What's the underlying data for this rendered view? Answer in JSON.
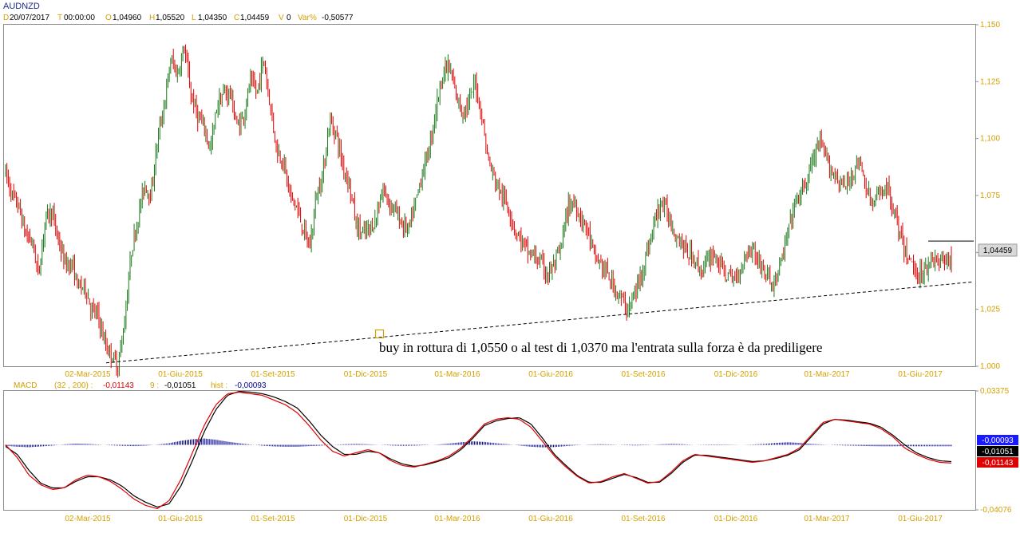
{
  "symbol": "AUDNZD",
  "ohlc_header": {
    "date_key": "D",
    "date": "20/07/2017",
    "time_key": "T",
    "time": "00:00:00",
    "open_key": "O",
    "open": "1,04960",
    "high_key": "H",
    "high": "1,05520",
    "low_key": "L",
    "low": "1,04350",
    "close_key": "C",
    "close": "1,04459",
    "volume_key": "V",
    "volume": "0",
    "var_key": "Var%",
    "var": "-0,50577"
  },
  "last_price_label": "1,04459",
  "annotation_text": "buy in rottura di 1,0550 o al test di 1,0370 ma l'entrata sulla forza è da prediligere",
  "macd_header": {
    "name": "MACD",
    "params": "(32 , 200) :",
    "macd_value": "-0,01143",
    "signal_key": "9 :",
    "signal_value": "-0,01051",
    "hist_key": "hist :",
    "hist_value": "-0,00093"
  },
  "macd_value_labels": [
    "-0,00093",
    "-0,01051",
    "-0,01143"
  ],
  "colors": {
    "up": "#1a7a1a",
    "down": "#e00000",
    "axis_text": "#d4a000",
    "macd_line": "#e00000",
    "signal_line": "#000000",
    "hist": "#00008b"
  },
  "chart_data": [
    {
      "type": "candlestick",
      "symbol": "AUDNZD",
      "x_tick_labels": [
        "02-Mar-2015",
        "01-Giu-2015",
        "01-Set-2015",
        "01-Dic-2015",
        "01-Mar-2016",
        "01-Giu-2016",
        "01-Set-2016",
        "01-Dic-2016",
        "01-Mar-2017",
        "01-Giu-2017"
      ],
      "y_tick_labels": [
        "1,150",
        "1,125",
        "1,100",
        "1,075",
        "1,050",
        "1,025",
        "1,000"
      ],
      "ylim": [
        1.0,
        1.15
      ],
      "trend_path": [
        [
          1.085,
          1.075
        ],
        [
          1.07,
          1.058
        ],
        [
          1.055,
          1.04
        ],
        [
          1.065,
          1.068
        ],
        [
          1.055,
          1.045
        ],
        [
          1.045,
          1.035
        ],
        [
          1.035,
          1.025
        ],
        [
          1.022,
          1.01
        ],
        [
          1.005,
          1.0
        ],
        [
          1.02,
          1.05
        ],
        [
          1.065,
          1.08
        ],
        [
          1.075,
          1.1
        ],
        [
          1.115,
          1.135
        ],
        [
          1.128,
          1.14
        ],
        [
          1.12,
          1.11
        ],
        [
          1.105,
          1.095
        ],
        [
          1.115,
          1.12
        ],
        [
          1.12,
          1.105
        ],
        [
          1.11,
          1.125
        ],
        [
          1.12,
          1.135
        ],
        [
          1.115,
          1.095
        ],
        [
          1.09,
          1.075
        ],
        [
          1.07,
          1.06
        ],
        [
          1.052,
          1.075
        ],
        [
          1.085,
          1.108
        ],
        [
          1.102,
          1.088
        ],
        [
          1.08,
          1.062
        ],
        [
          1.058,
          1.06
        ],
        [
          1.065,
          1.078
        ],
        [
          1.072,
          1.068
        ],
        [
          1.062,
          1.06
        ],
        [
          1.072,
          1.085
        ],
        [
          1.095,
          1.112
        ],
        [
          1.128,
          1.132
        ],
        [
          1.12,
          1.112
        ],
        [
          1.115,
          1.125
        ],
        [
          1.11,
          1.09
        ],
        [
          1.082,
          1.075
        ],
        [
          1.07,
          1.06
        ],
        [
          1.055,
          1.05
        ],
        [
          1.048,
          1.045
        ],
        [
          1.04,
          1.045
        ],
        [
          1.052,
          1.07
        ],
        [
          1.072,
          1.065
        ],
        [
          1.06,
          1.048
        ],
        [
          1.045,
          1.04
        ],
        [
          1.035,
          1.03
        ],
        [
          1.025,
          1.03
        ],
        [
          1.04,
          1.05
        ],
        [
          1.062,
          1.072
        ],
        [
          1.068,
          1.06
        ],
        [
          1.055,
          1.05
        ],
        [
          1.048,
          1.042
        ],
        [
          1.045,
          1.05
        ],
        [
          1.045,
          1.04
        ],
        [
          1.038,
          1.042
        ],
        [
          1.05,
          1.052
        ],
        [
          1.045,
          1.04
        ],
        [
          1.036,
          1.042
        ],
        [
          1.055,
          1.068
        ],
        [
          1.075,
          1.08
        ],
        [
          1.09,
          1.098
        ],
        [
          1.092,
          1.085
        ],
        [
          1.082,
          1.078
        ],
        [
          1.085,
          1.09
        ],
        [
          1.08,
          1.07
        ],
        [
          1.075,
          1.08
        ],
        [
          1.072,
          1.06
        ],
        [
          1.05,
          1.045
        ],
        [
          1.04,
          1.042
        ],
        [
          1.048,
          1.045
        ],
        [
          1.048,
          1.045
        ]
      ],
      "trendline_dashed": {
        "from": [
          "02-Mar-2015",
          1.0015
        ],
        "to": [
          "after 01-Giu-2017",
          1.037
        ]
      },
      "resistance_line": {
        "y": 1.055
      },
      "last_close": 1.04459
    },
    {
      "type": "line",
      "name": "MACD (32 , 200)",
      "y_tick_labels": [
        "0,03375",
        "-0,04076"
      ],
      "ylim": [
        -0.04076,
        0.03375
      ],
      "series": [
        {
          "name": "MACD",
          "color": "#e00000",
          "values": [
            0.0,
            -0.008,
            -0.019,
            -0.025,
            -0.028,
            -0.027,
            -0.022,
            -0.019,
            -0.02,
            -0.023,
            -0.028,
            -0.034,
            -0.038,
            -0.04,
            -0.035,
            -0.022,
            -0.005,
            0.012,
            0.025,
            0.032,
            0.033,
            0.032,
            0.031,
            0.028,
            0.025,
            0.02,
            0.012,
            0.003,
            -0.004,
            -0.007,
            -0.005,
            -0.003,
            -0.005,
            -0.01,
            -0.013,
            -0.014,
            -0.012,
            -0.01,
            -0.007,
            -0.002,
            0.005,
            0.013,
            0.016,
            0.017,
            0.016,
            0.011,
            0.002,
            -0.007,
            -0.014,
            -0.02,
            -0.024,
            -0.023,
            -0.02,
            -0.018,
            -0.021,
            -0.024,
            -0.023,
            -0.017,
            -0.01,
            -0.006,
            -0.007,
            -0.008,
            -0.009,
            -0.01,
            -0.011,
            -0.01,
            -0.008,
            -0.006,
            -0.002,
            0.006,
            0.014,
            0.016,
            0.015,
            0.014,
            0.013,
            0.01,
            0.005,
            -0.002,
            -0.006,
            -0.009,
            -0.011,
            -0.0114
          ]
        },
        {
          "name": "Signal 9",
          "color": "#000000",
          "values": [
            -0.001,
            -0.006,
            -0.016,
            -0.024,
            -0.027,
            -0.027,
            -0.023,
            -0.02,
            -0.02,
            -0.022,
            -0.026,
            -0.032,
            -0.036,
            -0.039,
            -0.037,
            -0.026,
            -0.01,
            0.008,
            0.022,
            0.031,
            0.0335,
            0.033,
            0.032,
            0.03,
            0.027,
            0.023,
            0.015,
            0.006,
            -0.001,
            -0.006,
            -0.006,
            -0.004,
            -0.005,
            -0.009,
            -0.012,
            -0.0135,
            -0.0125,
            -0.0105,
            -0.008,
            -0.003,
            0.004,
            0.012,
            0.015,
            0.0165,
            0.017,
            0.013,
            0.004,
            -0.006,
            -0.013,
            -0.0195,
            -0.0235,
            -0.0235,
            -0.021,
            -0.0185,
            -0.0205,
            -0.0235,
            -0.0235,
            -0.018,
            -0.011,
            -0.0065,
            -0.0065,
            -0.0075,
            -0.0085,
            -0.0095,
            -0.0105,
            -0.01,
            -0.0085,
            -0.0065,
            -0.003,
            0.005,
            0.013,
            0.016,
            0.0155,
            0.0145,
            0.0135,
            0.011,
            0.006,
            0.0,
            -0.005,
            -0.008,
            -0.01,
            -0.0105
          ]
        },
        {
          "name": "hist",
          "color": "#00008b",
          "values": [
            -0.0006,
            -0.0012,
            -0.0015,
            -0.001,
            -0.0005,
            0.0003,
            0.0008,
            0.0006,
            0.0002,
            -0.0003,
            -0.0006,
            -0.0008,
            -0.0005,
            0.0002,
            0.001,
            0.0025,
            0.0035,
            0.004,
            0.0032,
            0.002,
            0.001,
            0.0002,
            -0.0005,
            -0.001,
            -0.0012,
            -0.0012,
            -0.0008,
            -0.0005,
            0.0,
            0.0004,
            0.0006,
            0.0004,
            0.0,
            -0.0004,
            -0.0006,
            -0.0005,
            -0.0002,
            0.0002,
            0.0008,
            0.0016,
            0.0022,
            0.0018,
            0.001,
            0.0004,
            -0.0004,
            -0.0012,
            -0.0016,
            -0.0014,
            -0.0008,
            -0.0002,
            0.0002,
            0.0004,
            0.0002,
            -0.0002,
            -0.0004,
            -0.0002,
            0.0003,
            0.0006,
            0.0004,
            0.0,
            -0.0002,
            -0.0003,
            -0.0002,
            0.0,
            0.0002,
            0.0006,
            0.0012,
            0.0016,
            0.0012,
            0.0006,
            0.0002,
            -0.0002,
            -0.0004,
            -0.0006,
            -0.0008,
            -0.0009,
            -0.0009,
            -0.0008,
            -0.0009,
            -0.0009,
            -0.0009,
            -0.0009
          ]
        }
      ]
    }
  ]
}
